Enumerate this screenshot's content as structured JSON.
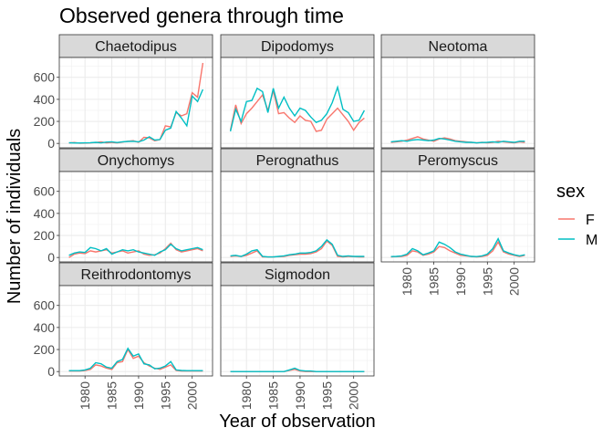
{
  "chart_data": {
    "type": "line",
    "title": "Observed genera through time",
    "xlabel": "Year of observation",
    "ylabel": "Number of individuals",
    "xlim": [
      1975.2,
      2003.8
    ],
    "ylim": [
      -40,
      780
    ],
    "x_ticks": [
      1980,
      1985,
      1990,
      1995,
      2000
    ],
    "x_tick_labels": [
      "1980",
      "1985",
      "1990",
      "1995",
      "2000"
    ],
    "y_ticks": [
      0,
      200,
      400,
      600
    ],
    "y_tick_labels": [
      "0",
      "200",
      "400",
      "600"
    ],
    "grid": true,
    "legend": {
      "title": "sex",
      "placement": "right",
      "entries": [
        {
          "label": "F",
          "color": "#F8766D"
        },
        {
          "label": "M",
          "color": "#00BFC4"
        }
      ]
    },
    "x": [
      1977,
      1978,
      1979,
      1980,
      1981,
      1982,
      1983,
      1984,
      1985,
      1986,
      1987,
      1988,
      1989,
      1990,
      1991,
      1992,
      1993,
      1994,
      1995,
      1996,
      1997,
      1998,
      1999,
      2000,
      2001,
      2002
    ],
    "panels": [
      {
        "name": "Chaetodipus",
        "series": [
          {
            "name": "F",
            "values": [
              4,
              8,
              2,
              3,
              5,
              8,
              15,
              5,
              10,
              5,
              12,
              20,
              25,
              10,
              55,
              50,
              25,
              35,
              160,
              150,
              280,
              250,
              270,
              460,
              420,
              730
            ]
          },
          {
            "name": "M",
            "values": [
              6,
              4,
              4,
              5,
              6,
              10,
              5,
              12,
              15,
              8,
              15,
              18,
              20,
              15,
              30,
              60,
              30,
              35,
              120,
              140,
              290,
              230,
              160,
              430,
              380,
              490
            ]
          }
        ]
      },
      {
        "name": "Dipodomys",
        "series": [
          {
            "name": "F",
            "values": [
              120,
              350,
              180,
              270,
              320,
              380,
              440,
              300,
              480,
              270,
              280,
              230,
              190,
              250,
              210,
              200,
              110,
              120,
              220,
              270,
              320,
              260,
              200,
              120,
              190,
              230
            ]
          },
          {
            "name": "M",
            "values": [
              110,
              310,
              200,
              380,
              390,
              500,
              470,
              280,
              500,
              320,
              420,
              320,
              250,
              320,
              300,
              240,
              190,
              210,
              270,
              370,
              510,
              310,
              280,
              200,
              210,
              300
            ]
          }
        ]
      },
      {
        "name": "Neotoma",
        "series": [
          {
            "name": "F",
            "values": [
              10,
              15,
              20,
              30,
              45,
              60,
              40,
              30,
              20,
              40,
              50,
              40,
              25,
              20,
              15,
              10,
              5,
              10,
              5,
              10,
              20,
              15,
              10,
              5,
              15,
              10
            ]
          },
          {
            "name": "M",
            "values": [
              15,
              20,
              25,
              20,
              30,
              35,
              30,
              25,
              30,
              45,
              40,
              30,
              20,
              15,
              10,
              10,
              5,
              8,
              10,
              15,
              10,
              20,
              15,
              10,
              20,
              20
            ]
          }
        ]
      },
      {
        "name": "Onychomys",
        "series": [
          {
            "name": "F",
            "values": [
              0,
              30,
              40,
              35,
              60,
              50,
              60,
              70,
              40,
              50,
              60,
              40,
              50,
              60,
              30,
              20,
              25,
              40,
              80,
              130,
              70,
              50,
              60,
              70,
              80,
              60
            ]
          },
          {
            "name": "M",
            "values": [
              20,
              40,
              50,
              45,
              90,
              80,
              60,
              80,
              30,
              50,
              70,
              60,
              70,
              50,
              40,
              30,
              20,
              50,
              70,
              120,
              80,
              60,
              70,
              80,
              90,
              70
            ]
          }
        ]
      },
      {
        "name": "Perognathus",
        "series": [
          {
            "name": "F",
            "values": [
              10,
              15,
              10,
              20,
              40,
              60,
              5,
              5,
              5,
              8,
              10,
              20,
              25,
              30,
              30,
              35,
              50,
              80,
              150,
              110,
              10,
              5,
              10,
              8,
              5,
              5
            ]
          },
          {
            "name": "M",
            "values": [
              15,
              20,
              10,
              30,
              60,
              70,
              10,
              5,
              5,
              10,
              15,
              25,
              30,
              40,
              40,
              45,
              60,
              100,
              160,
              120,
              20,
              10,
              15,
              10,
              10,
              10
            ]
          }
        ]
      },
      {
        "name": "Peromyscus",
        "series": [
          {
            "name": "F",
            "values": [
              5,
              8,
              10,
              20,
              60,
              50,
              20,
              30,
              50,
              100,
              90,
              60,
              40,
              20,
              15,
              10,
              5,
              10,
              20,
              60,
              140,
              50,
              30,
              20,
              10,
              20
            ]
          },
          {
            "name": "M",
            "values": [
              8,
              10,
              15,
              30,
              80,
              60,
              25,
              40,
              60,
              140,
              120,
              90,
              50,
              30,
              20,
              10,
              8,
              15,
              30,
              80,
              170,
              60,
              40,
              25,
              15,
              25
            ]
          }
        ]
      },
      {
        "name": "Reithrodontomys",
        "series": [
          {
            "name": "F",
            "values": [
              5,
              5,
              5,
              10,
              20,
              60,
              50,
              30,
              20,
              80,
              90,
              200,
              120,
              140,
              80,
              50,
              30,
              20,
              40,
              60,
              10,
              5,
              5,
              5,
              5,
              5
            ]
          },
          {
            "name": "M",
            "values": [
              8,
              8,
              8,
              15,
              30,
              80,
              70,
              40,
              30,
              90,
              110,
              210,
              140,
              160,
              70,
              60,
              25,
              30,
              50,
              90,
              15,
              10,
              8,
              8,
              8,
              8
            ]
          }
        ]
      },
      {
        "name": "Sigmodon",
        "series": [
          {
            "name": "F",
            "values": [
              0,
              0,
              0,
              0,
              0,
              0,
              0,
              0,
              0,
              0,
              0,
              10,
              20,
              5,
              0,
              0,
              0,
              0,
              0,
              0,
              0,
              0,
              0,
              0,
              0,
              0
            ]
          },
          {
            "name": "M",
            "values": [
              0,
              0,
              0,
              0,
              0,
              0,
              0,
              0,
              0,
              0,
              0,
              15,
              30,
              10,
              5,
              5,
              0,
              0,
              0,
              0,
              0,
              0,
              0,
              0,
              0,
              0
            ]
          }
        ]
      }
    ]
  }
}
